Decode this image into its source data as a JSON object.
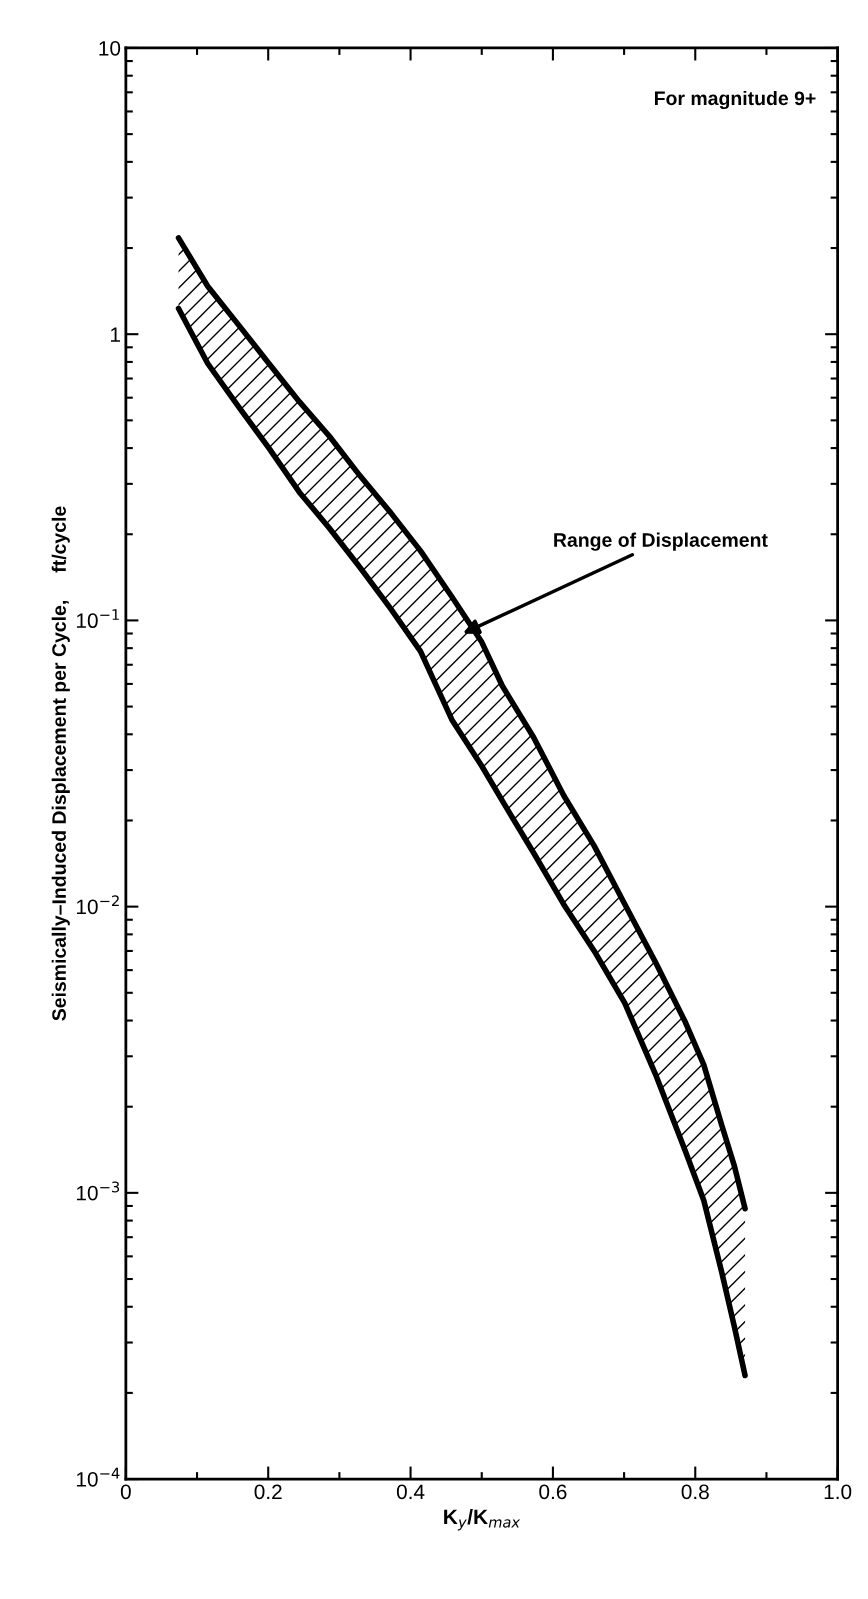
{
  "chart_data": {
    "type": "line",
    "xlabel": "K$_{y}$/K$_{max}$",
    "ylabel": "Seismically–Induced Displacement per Cycle,     ft/cycle",
    "annotations": [
      "For magnitude 9+",
      "Range of Displacement"
    ],
    "series": [
      {
        "color": "#000000",
        "x": [
          0.074,
          0.115,
          0.158,
          0.201,
          0.244,
          0.286,
          0.329,
          0.372,
          0.414,
          0.458,
          0.5,
          0.529,
          0.573,
          0.615,
          0.658,
          0.701,
          0.744,
          0.786,
          0.812,
          0.837,
          0.855,
          0.87
        ],
        "values": [
          2.17,
          1.47,
          1.08,
          0.79,
          0.58,
          0.44,
          0.32,
          0.238,
          0.175,
          0.121,
          0.084,
          0.059,
          0.039,
          0.0245,
          0.0163,
          0.0102,
          0.0064,
          0.00395,
          0.0028,
          0.00173,
          0.00124,
          0.00088
        ]
      },
      {
        "color": "#000000",
        "x": [
          0.074,
          0.115,
          0.158,
          0.201,
          0.244,
          0.286,
          0.329,
          0.372,
          0.414,
          0.458,
          0.5,
          0.529,
          0.573,
          0.615,
          0.658,
          0.701,
          0.744,
          0.786,
          0.812,
          0.837,
          0.855,
          0.87
        ],
        "values": [
          1.23,
          0.79,
          0.56,
          0.4,
          0.28,
          0.21,
          0.153,
          0.11,
          0.078,
          0.045,
          0.031,
          0.0234,
          0.0154,
          0.0102,
          0.007,
          0.0046,
          0.0026,
          0.0014,
          0.00094,
          0.00053,
          0.00034,
          0.00023
        ]
      },
      {
        "color": "#000000",
        "x": [
          0.074,
          0.115,
          0.158,
          0.201,
          0.244,
          0.286,
          0.329,
          0.372,
          0.414,
          0.458,
          0.5,
          0.529,
          0.573,
          0.615,
          0.658,
          0.701,
          0.744,
          0.786,
          0.812,
          0.837,
          0.855,
          0.87
        ],
        "values": [
          null,
          null,
          null,
          null,
          null,
          null,
          null,
          null,
          null,
          null,
          null,
          null,
          null,
          null,
          null,
          null,
          null,
          null,
          null,
          null,
          null,
          null
        ],
        "upper": [
          2.17,
          1.47,
          1.08,
          0.79,
          0.58,
          0.44,
          0.32,
          0.238,
          0.175,
          0.121,
          0.084,
          0.059,
          0.039,
          0.0245,
          0.0163,
          0.0102,
          0.0064,
          0.00395,
          0.0028,
          0.00173,
          0.00124,
          0.00088
        ],
        "lower": [
          1.23,
          0.79,
          0.56,
          0.4,
          0.28,
          0.21,
          0.153,
          0.11,
          0.078,
          0.045,
          0.031,
          0.0234,
          0.0154,
          0.0102,
          0.007,
          0.0046,
          0.0026,
          0.0014,
          0.00094,
          0.00053,
          0.00034,
          0.00023
        ]
      }
    ],
    "log": "y",
    "xlim": [
      0,
      1.0
    ],
    "ylim": [
      0.0001,
      10
    ],
    "xticks": [
      0,
      0.2,
      0.4,
      0.6,
      0.8,
      {
        "value": 1.0,
        "label": "1.0"
      }
    ],
    "yticks": [
      {
        "value": 0.0001,
        "label": "10$^{−4}$"
      },
      {
        "value": 0.001,
        "label": "10$^{−3}$"
      },
      {
        "value": 0.01,
        "label": "10$^{−2}$"
      },
      {
        "value": 0.1,
        "label": "10$^{−1}$"
      },
      1,
      10
    ],
    "grid": false,
    "legend": false,
    "marker": "none",
    "line_style": "solid"
  }
}
